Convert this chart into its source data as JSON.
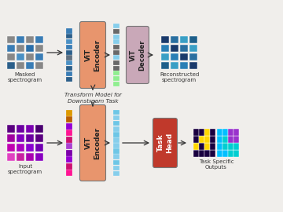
{
  "bg_color": "#f0eeeb",
  "encoder_color": "#E8956D",
  "decoder_color": "#C9A8B8",
  "task_head_color": "#C0392B",
  "arrow_color": "#333333",
  "top_label_left": "Masked\nspectrogram",
  "top_label_right": "Reconstructed\nspectrogram",
  "bottom_label_left": "Input\nspectrogram",
  "bottom_label_right": "Task Specific\nOutputs",
  "transform_text": "Transform Model for\nDownstream Task",
  "encoder_text": "ViT\nEncoder",
  "decoder_text": "ViT\nDecoder",
  "task_head_text": "Task\nHead",
  "masked_colors": [
    [
      "#888888",
      "#3a7db5",
      "#888888",
      "#3a7db5"
    ],
    [
      "#3a7db5",
      "#888888",
      "#2a6faa",
      "#888888"
    ],
    [
      "#888888",
      "#4a90c4",
      "#888888",
      "#3a7db5"
    ],
    [
      "#2c5f8a",
      "#888888",
      "#3a7db5",
      "#888888"
    ]
  ],
  "recon_colors": [
    [
      "#1a3a6b",
      "#2a6fa0",
      "#3a9fc5",
      "#1e5f8a"
    ],
    [
      "#2a7fb5",
      "#1a3a6b",
      "#2a6fa0",
      "#3a9fc5"
    ],
    [
      "#3a9fc5",
      "#2a7fb5",
      "#1a3a6b",
      "#2a6fa0"
    ],
    [
      "#1e5f8a",
      "#3a9fc5",
      "#2a7fb5",
      "#1a3a6b"
    ]
  ],
  "input_colors": [
    [
      "#5a0080",
      "#6a00a0",
      "#7a00b0",
      "#4a0070"
    ],
    [
      "#a000a0",
      "#8000c0",
      "#6a00a0",
      "#5a0080"
    ],
    [
      "#c000b0",
      "#a800c0",
      "#8800d0",
      "#7000b0"
    ],
    [
      "#e040c0",
      "#c820a0",
      "#a800b0",
      "#8800c0"
    ]
  ],
  "token_top_enc": [
    "#2c5f8a",
    "#3a7db5",
    "#2c5f8a",
    "#4a90c4",
    "#607080",
    "#2c5f8a",
    "#3a7db5",
    "#4a90c4",
    "#2c5f8a",
    "#3a7db5"
  ],
  "token_top_dec": [
    "#90EE90",
    "#90EE90",
    "#90EE90",
    "#696969",
    "#696969",
    "#87CEEB",
    "#696969",
    "#696969",
    "#87CEEB",
    "#87CEEB",
    "#696969",
    "#87CEEB"
  ],
  "token_bot_enc": [
    "#FF1493",
    "#CC1070",
    "#9400D3",
    "#7B00AA",
    "#AA40D0",
    "#CC1070",
    "#FF1493",
    "#9400D3",
    "#BB6000",
    "#DD9900"
  ],
  "token_bot_out": [
    "#87CEEB",
    "#87CEEB",
    "#6EC6E6",
    "#87CEEB",
    "#6EC6E6",
    "#87CEEB",
    "#87CEEB",
    "#6EC6E6",
    "#87CEEB",
    "#6EC6E6",
    "#87CEEB",
    "#6EC6E6"
  ]
}
